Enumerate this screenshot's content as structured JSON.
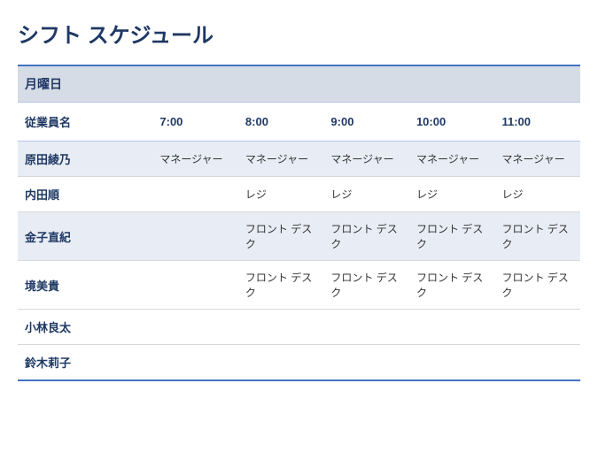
{
  "title": "シフト スケジュール",
  "day": "月曜日",
  "columns": {
    "name": "従業員名",
    "times": [
      "7:00",
      "8:00",
      "9:00",
      "10:00",
      "11:00"
    ]
  },
  "employees": [
    {
      "name": "原田綾乃",
      "shifts": [
        "マネージャー",
        "マネージャー",
        "マネージャー",
        "マネージャー",
        "マネージャー"
      ],
      "alt": true
    },
    {
      "name": "内田順",
      "shifts": [
        "",
        "レジ",
        "レジ",
        "レジ",
        "レジ"
      ],
      "alt": false
    },
    {
      "name": "金子直紀",
      "shifts": [
        "",
        "フロント デスク",
        "フロント デスク",
        "フロント デスク",
        "フロント デスク"
      ],
      "alt": true
    },
    {
      "name": "境美貴",
      "shifts": [
        "",
        "フロント デスク",
        "フロント デスク",
        "フロント デスク",
        "フロント デスク"
      ],
      "alt": false
    },
    {
      "name": "小林良太",
      "shifts": [
        "",
        "",
        "",
        "",
        ""
      ],
      "alt": false
    },
    {
      "name": "鈴木莉子",
      "shifts": [
        "",
        "",
        "",
        "",
        ""
      ],
      "alt": false
    }
  ],
  "colors": {
    "title": "#1f3864",
    "header_bg": "#d6dce5",
    "header_border_top": "#4472c4",
    "header_border_bottom": "#b4c6e7",
    "row_alt_bg": "#e8edf5",
    "row_border": "#d9d9d9",
    "table_bottom_border": "#4472c4",
    "text": "#333333"
  }
}
